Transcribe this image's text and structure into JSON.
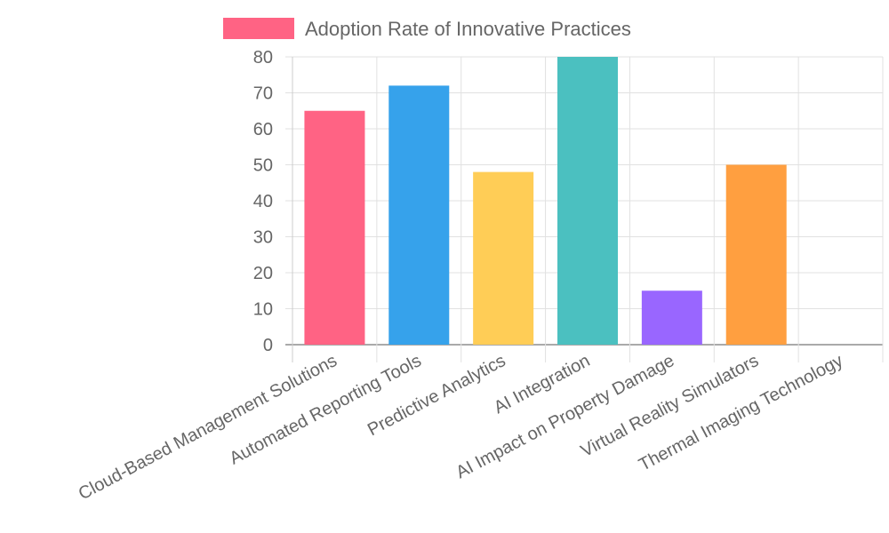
{
  "chart_data": {
    "type": "bar",
    "categories": [
      "Cloud-Based Management Solutions",
      "Automated Reporting Tools",
      "Predictive Analytics",
      "AI Integration",
      "AI Impact on Property Damage",
      "Virtual Reality Simulators",
      "Thermal Imaging Technology"
    ],
    "series": [
      {
        "name": "Adoption Rate of Innovative Practices",
        "values": [
          65,
          72,
          48,
          80,
          15,
          50,
          0
        ]
      }
    ],
    "colors": [
      "#ff6384",
      "#36a2eb",
      "#ffcd56",
      "#4bc0c0",
      "#9966ff",
      "#ff9f40",
      "#c9cbcf"
    ],
    "legend_color": "#ff6384",
    "ylim": [
      0,
      80
    ],
    "yticks": [
      "0",
      "10",
      "20",
      "30",
      "40",
      "50",
      "60",
      "70",
      "80"
    ],
    "grid": true,
    "legend": "top"
  }
}
